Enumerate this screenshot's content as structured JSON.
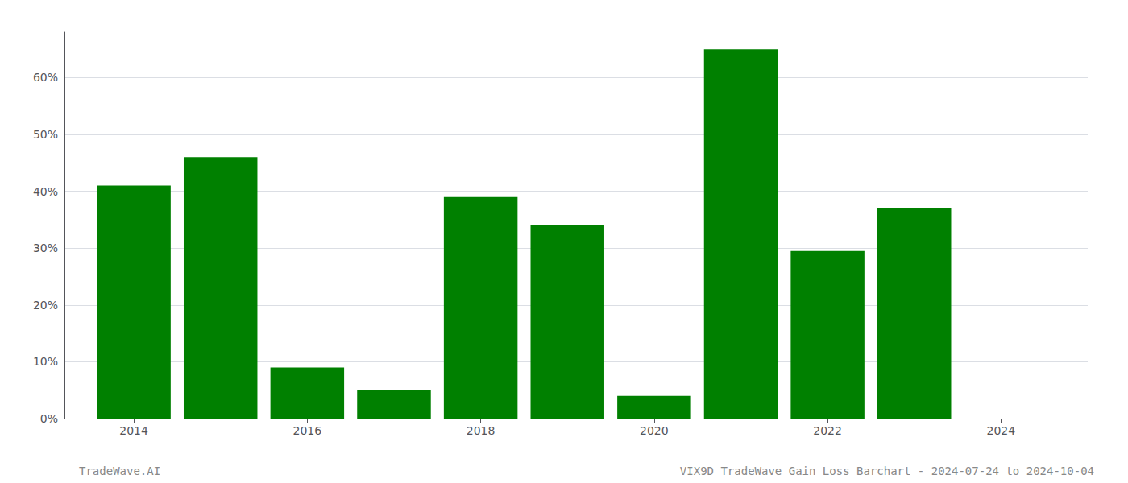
{
  "chart_data": {
    "type": "bar",
    "x": [
      2014,
      2015,
      2016,
      2017,
      2018,
      2019,
      2020,
      2021,
      2022,
      2023,
      2024
    ],
    "values": [
      0.41,
      0.46,
      0.09,
      0.05,
      0.39,
      0.34,
      0.04,
      0.65,
      0.295,
      0.37,
      0.0
    ],
    "color": "#008000",
    "xlim": [
      2013.2,
      2025.0
    ],
    "xticks": [
      2014,
      2016,
      2018,
      2020,
      2022,
      2024
    ],
    "ylim": [
      0,
      0.68
    ],
    "yticks": [
      {
        "value": 0.0,
        "label": "0%"
      },
      {
        "value": 0.1,
        "label": "10%"
      },
      {
        "value": 0.2,
        "label": "20%"
      },
      {
        "value": 0.3,
        "label": "30%"
      },
      {
        "value": 0.4,
        "label": "40%"
      },
      {
        "value": 0.5,
        "label": "50%"
      },
      {
        "value": 0.6,
        "label": "60%"
      }
    ],
    "grid": true,
    "annotations": [
      "TradeWave.AI",
      "VIX9D TradeWave Gain Loss Barchart - 2024-07-24 to 2024-10-04"
    ]
  }
}
